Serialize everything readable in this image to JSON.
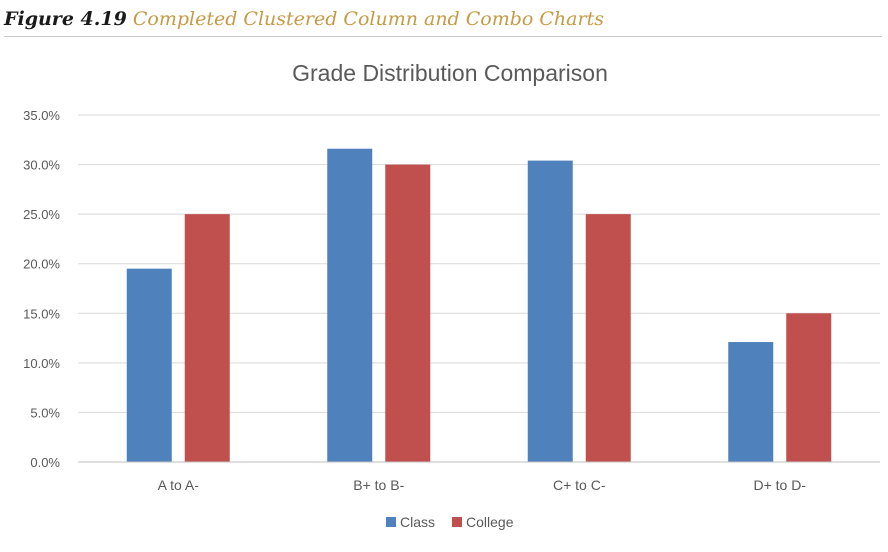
{
  "caption": {
    "label": "Figure 4.19",
    "text": "Completed Clustered Column and Combo Charts"
  },
  "chart_data": {
    "type": "bar",
    "title": "Grade Distribution Comparison",
    "xlabel": "",
    "ylabel": "",
    "categories": [
      "A to A-",
      "B+ to B-",
      "C+ to C-",
      "D+ to D-"
    ],
    "series": [
      {
        "name": "Class",
        "color": "#4f81bd",
        "values": [
          0.195,
          0.316,
          0.304,
          0.121
        ]
      },
      {
        "name": "College",
        "color": "#c0504d",
        "values": [
          0.25,
          0.3,
          0.25,
          0.15
        ]
      }
    ],
    "ylim": [
      0,
      0.35
    ],
    "yticks": [
      "0.0%",
      "5.0%",
      "10.0%",
      "15.0%",
      "20.0%",
      "25.0%",
      "30.0%",
      "35.0%"
    ],
    "grid": true,
    "legend": "bottom"
  }
}
